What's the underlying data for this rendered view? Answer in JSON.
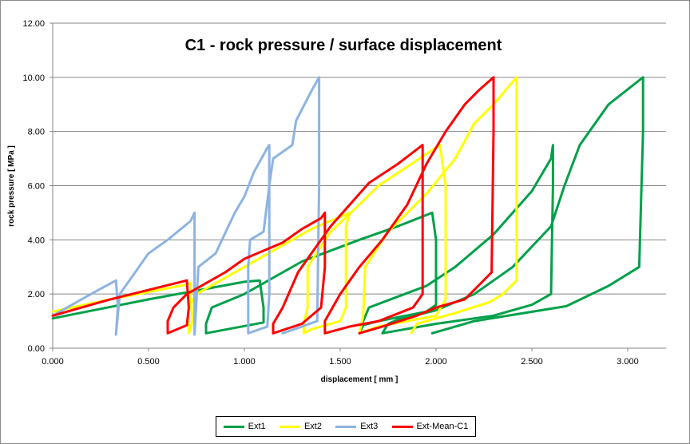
{
  "chart_data": {
    "type": "line",
    "title": "C1 - rock pressure / surface displacement",
    "xlabel": "displacement [ mm ]",
    "ylabel": "rock pressure [ MPa ]",
    "xlim": [
      0,
      3.2
    ],
    "ylim": [
      0,
      12
    ],
    "x_ticks": [
      "0.000",
      "0.500",
      "1.000",
      "1.500",
      "2.000",
      "2.500",
      "3.000"
    ],
    "y_ticks": [
      "0.00",
      "2.00",
      "4.00",
      "6.00",
      "8.00",
      "10.00",
      "12.00"
    ],
    "grid": "horizontal",
    "legend_position": "bottom",
    "series": [
      {
        "name": "Ext1",
        "color": "#00a04a",
        "points": [
          [
            0.0,
            1.1
          ],
          [
            0.5,
            1.8
          ],
          [
            1.0,
            2.45
          ],
          [
            1.08,
            2.5
          ],
          [
            1.1,
            1.5
          ],
          [
            1.1,
            0.95
          ],
          [
            0.8,
            0.55
          ],
          [
            0.8,
            0.9
          ],
          [
            0.83,
            1.5
          ],
          [
            1.0,
            2.0
          ],
          [
            1.3,
            3.2
          ],
          [
            1.6,
            4.0
          ],
          [
            1.8,
            4.5
          ],
          [
            1.98,
            5.0
          ],
          [
            2.0,
            4.0
          ],
          [
            2.0,
            1.6
          ],
          [
            1.95,
            1.35
          ],
          [
            1.7,
            1.0
          ],
          [
            1.62,
            0.85
          ],
          [
            1.6,
            0.55
          ],
          [
            1.62,
            1.0
          ],
          [
            1.65,
            1.5
          ],
          [
            1.95,
            2.3
          ],
          [
            2.1,
            3.0
          ],
          [
            2.3,
            4.2
          ],
          [
            2.5,
            5.8
          ],
          [
            2.6,
            7.0
          ],
          [
            2.61,
            7.5
          ],
          [
            2.61,
            6.0
          ],
          [
            2.6,
            2.0
          ],
          [
            2.5,
            1.6
          ],
          [
            2.3,
            1.2
          ],
          [
            2.0,
            0.9
          ],
          [
            1.72,
            0.55
          ],
          [
            1.75,
            0.9
          ],
          [
            1.8,
            1.05
          ],
          [
            2.0,
            1.4
          ],
          [
            2.2,
            2.0
          ],
          [
            2.4,
            3.0
          ],
          [
            2.6,
            4.5
          ],
          [
            2.67,
            6.0
          ],
          [
            2.75,
            7.5
          ],
          [
            2.9,
            9.0
          ],
          [
            3.08,
            10.0
          ],
          [
            3.08,
            8.0
          ],
          [
            3.06,
            3.0
          ],
          [
            2.9,
            2.3
          ],
          [
            2.68,
            1.55
          ],
          [
            2.2,
            1.0
          ],
          [
            1.98,
            0.55
          ]
        ]
      },
      {
        "name": "Ext2",
        "color": "#ffff00",
        "points": [
          [
            0.0,
            1.35
          ],
          [
            0.3,
            1.8
          ],
          [
            0.7,
            2.35
          ],
          [
            0.72,
            2.4
          ],
          [
            0.72,
            1.8
          ],
          [
            0.73,
            1.0
          ],
          [
            0.71,
            0.55
          ],
          [
            0.71,
            1.5
          ],
          [
            0.75,
            2.0
          ],
          [
            1.0,
            3.0
          ],
          [
            1.2,
            3.8
          ],
          [
            1.35,
            4.4
          ],
          [
            1.55,
            5.0
          ],
          [
            1.53,
            4.5
          ],
          [
            1.53,
            1.5
          ],
          [
            1.5,
            1.0
          ],
          [
            1.35,
            0.7
          ],
          [
            1.31,
            0.55
          ],
          [
            1.31,
            0.9
          ],
          [
            1.33,
            1.5
          ],
          [
            1.33,
            3.0
          ],
          [
            1.45,
            4.3
          ],
          [
            1.6,
            5.3
          ],
          [
            1.7,
            6.0
          ],
          [
            1.85,
            6.7
          ],
          [
            2.02,
            7.5
          ],
          [
            2.05,
            6.0
          ],
          [
            2.05,
            1.8
          ],
          [
            2.0,
            1.2
          ],
          [
            1.7,
            0.8
          ],
          [
            1.6,
            0.55
          ],
          [
            1.62,
            1.2
          ],
          [
            1.63,
            3.0
          ],
          [
            1.75,
            4.3
          ],
          [
            1.95,
            5.7
          ],
          [
            2.1,
            7.0
          ],
          [
            2.2,
            8.3
          ],
          [
            2.3,
            9.0
          ],
          [
            2.42,
            10.0
          ],
          [
            2.42,
            8.0
          ],
          [
            2.42,
            2.5
          ],
          [
            2.35,
            2.0
          ],
          [
            2.28,
            1.7
          ],
          [
            2.1,
            1.3
          ],
          [
            1.9,
            0.9
          ],
          [
            1.87,
            0.55
          ]
        ]
      },
      {
        "name": "Ext3",
        "color": "#8db4e2",
        "points": [
          [
            0.0,
            1.2
          ],
          [
            0.1,
            1.6
          ],
          [
            0.2,
            2.0
          ],
          [
            0.33,
            2.5
          ],
          [
            0.34,
            1.5
          ],
          [
            0.33,
            0.5
          ],
          [
            0.35,
            2.0
          ],
          [
            0.4,
            2.5
          ],
          [
            0.5,
            3.5
          ],
          [
            0.6,
            4.0
          ],
          [
            0.72,
            4.7
          ],
          [
            0.74,
            5.0
          ],
          [
            0.74,
            3.0
          ],
          [
            0.74,
            1.5
          ],
          [
            0.74,
            0.5
          ],
          [
            0.76,
            3.0
          ],
          [
            0.85,
            3.5
          ],
          [
            0.95,
            5.0
          ],
          [
            1.0,
            5.6
          ],
          [
            1.05,
            6.5
          ],
          [
            1.12,
            7.4
          ],
          [
            1.13,
            7.5
          ],
          [
            1.13,
            5.0
          ],
          [
            1.13,
            2.0
          ],
          [
            1.12,
            0.8
          ],
          [
            1.02,
            0.55
          ],
          [
            1.02,
            3.0
          ],
          [
            1.03,
            4.0
          ],
          [
            1.1,
            4.3
          ],
          [
            1.13,
            6.0
          ],
          [
            1.15,
            7.0
          ],
          [
            1.25,
            7.5
          ],
          [
            1.27,
            8.4
          ],
          [
            1.35,
            9.5
          ],
          [
            1.39,
            10.0
          ],
          [
            1.39,
            6.0
          ],
          [
            1.38,
            1.0
          ],
          [
            1.3,
            0.8
          ],
          [
            1.2,
            0.55
          ]
        ]
      },
      {
        "name": "Ext-Mean-C1",
        "color": "#ff0000",
        "points": [
          [
            0.0,
            1.2
          ],
          [
            0.3,
            1.8
          ],
          [
            0.7,
            2.5
          ],
          [
            0.71,
            1.5
          ],
          [
            0.7,
            0.85
          ],
          [
            0.6,
            0.55
          ],
          [
            0.6,
            1.0
          ],
          [
            0.63,
            1.5
          ],
          [
            0.7,
            2.0
          ],
          [
            0.9,
            2.8
          ],
          [
            1.0,
            3.3
          ],
          [
            1.2,
            3.9
          ],
          [
            1.3,
            4.4
          ],
          [
            1.4,
            4.8
          ],
          [
            1.42,
            5.0
          ],
          [
            1.42,
            3.0
          ],
          [
            1.4,
            1.5
          ],
          [
            1.3,
            0.9
          ],
          [
            1.15,
            0.55
          ],
          [
            1.15,
            0.9
          ],
          [
            1.2,
            1.5
          ],
          [
            1.28,
            2.8
          ],
          [
            1.35,
            3.5
          ],
          [
            1.45,
            4.5
          ],
          [
            1.55,
            5.3
          ],
          [
            1.65,
            6.1
          ],
          [
            1.8,
            6.8
          ],
          [
            1.93,
            7.5
          ],
          [
            1.93,
            5.0
          ],
          [
            1.93,
            2.0
          ],
          [
            1.88,
            1.5
          ],
          [
            1.7,
            1.0
          ],
          [
            1.55,
            0.8
          ],
          [
            1.42,
            0.55
          ],
          [
            1.42,
            1.0
          ],
          [
            1.5,
            2.0
          ],
          [
            1.6,
            3.0
          ],
          [
            1.72,
            4.0
          ],
          [
            1.85,
            5.3
          ],
          [
            1.95,
            6.8
          ],
          [
            2.05,
            8.0
          ],
          [
            2.15,
            9.0
          ],
          [
            2.22,
            9.5
          ],
          [
            2.3,
            10.0
          ],
          [
            2.3,
            8.0
          ],
          [
            2.29,
            2.8
          ],
          [
            2.22,
            2.3
          ],
          [
            2.15,
            1.8
          ],
          [
            2.0,
            1.5
          ],
          [
            1.9,
            1.2
          ],
          [
            1.72,
            0.8
          ],
          [
            1.6,
            0.55
          ]
        ]
      }
    ]
  }
}
